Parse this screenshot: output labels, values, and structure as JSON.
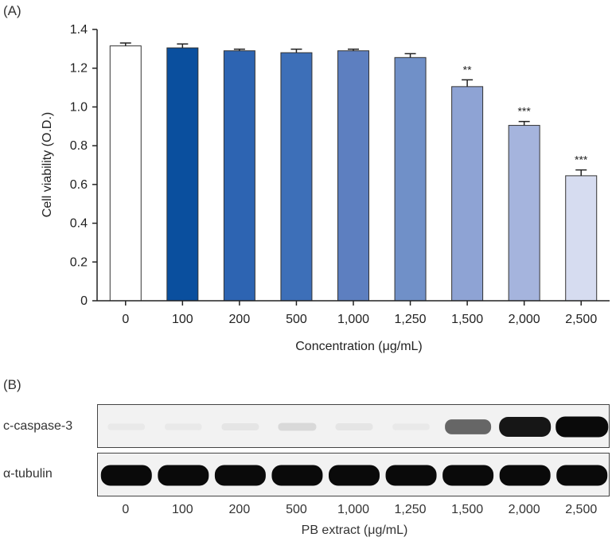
{
  "panel_a_label": "(A)",
  "panel_b_label": "(B)",
  "chart_data": {
    "type": "bar",
    "title": "",
    "xlabel": "Concentration (μg/mL)",
    "ylabel": "Cell viability (O.D.)",
    "ylim": [
      0,
      1.4
    ],
    "yticks": [
      "0",
      "0.2",
      "0.4",
      "0.6",
      "0.8",
      "1.0",
      "1.2",
      "1.4"
    ],
    "ytick_values": [
      0,
      0.2,
      0.4,
      0.6,
      0.8,
      1.0,
      1.2,
      1.4
    ],
    "categories": [
      "0",
      "100",
      "200",
      "500",
      "1,000",
      "1,250",
      "1,500",
      "2,000",
      "2,500"
    ],
    "values": [
      1.315,
      1.305,
      1.29,
      1.28,
      1.29,
      1.255,
      1.105,
      0.905,
      0.645
    ],
    "errors": [
      0.015,
      0.02,
      0.008,
      0.018,
      0.008,
      0.02,
      0.035,
      0.02,
      0.03
    ],
    "significance": [
      "",
      "",
      "",
      "",
      "",
      "",
      "**",
      "***",
      "***"
    ],
    "bar_colors": [
      "#ffffff",
      "#0a4f9e",
      "#2d64b2",
      "#3d6fb8",
      "#5d7fc0",
      "#7090c8",
      "#8ea3d4",
      "#a5b4dd",
      "#d6dcf0"
    ]
  },
  "blot": {
    "bands": [
      {
        "label": "c-caspase-3",
        "intensities": [
          0.03,
          0.03,
          0.05,
          0.1,
          0.05,
          0.03,
          0.6,
          0.95,
          1.0
        ]
      },
      {
        "label": "α-tubulin",
        "intensities": [
          1,
          1,
          1,
          1,
          1,
          1,
          1,
          1,
          1
        ]
      }
    ],
    "lanes": [
      "0",
      "100",
      "200",
      "500",
      "1,000",
      "1,250",
      "1,500",
      "2,000",
      "2,500"
    ],
    "xlabel": "PB extract (μg/mL)"
  }
}
